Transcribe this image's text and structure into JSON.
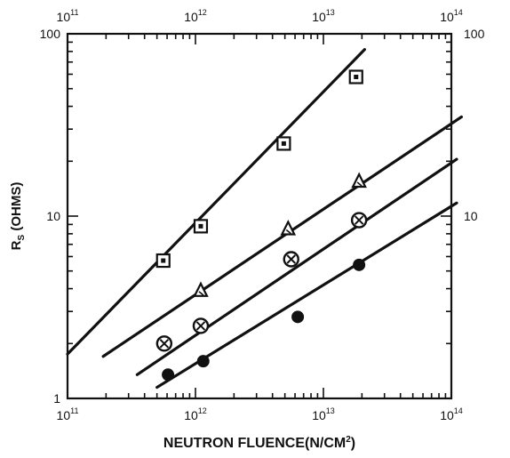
{
  "chart_data": {
    "type": "scatter",
    "x_scale": "log",
    "y_scale": "log",
    "xlim": [
      100000000000.0,
      100000000000000.0
    ],
    "ylim": [
      1,
      100
    ],
    "x_ticks": [
      100000000000.0,
      1000000000000.0,
      10000000000000.0,
      100000000000000.0
    ],
    "y_ticks": [
      1,
      10,
      100
    ],
    "x_tick_labels": [
      {
        "base": "10",
        "exp": "11"
      },
      {
        "base": "10",
        "exp": "12"
      },
      {
        "base": "10",
        "exp": "13"
      },
      {
        "base": "10",
        "exp": "14"
      }
    ],
    "y_tick_labels": [
      "1",
      "10",
      "100"
    ],
    "right_y_tick_labels": [
      "10",
      "100"
    ],
    "xlabel": {
      "text": "NEUTRON FLUENCE(N/CM",
      "exp": "2",
      "close": ")"
    },
    "ylabel": {
      "main": "R",
      "sub": "S",
      "rest": " (OHMS)"
    },
    "grid": false,
    "series": [
      {
        "marker": "square-dot",
        "points": [
          [
            560000000000.0,
            5.7
          ],
          [
            1100000000000.0,
            8.8
          ],
          [
            4900000000000.0,
            25
          ],
          [
            18000000000000.0,
            58
          ]
        ],
        "fit": [
          [
            100000000000.0,
            1.75
          ],
          [
            21000000000000.0,
            82
          ]
        ]
      },
      {
        "marker": "triangle",
        "points": [
          [
            1100000000000.0,
            3.9
          ],
          [
            5300000000000.0,
            8.5
          ],
          [
            19000000000000.0,
            15.5
          ]
        ],
        "fit": [
          [
            190000000000.0,
            1.7
          ],
          [
            120000000000000.0,
            35
          ]
        ]
      },
      {
        "marker": "circle-x",
        "points": [
          [
            570000000000.0,
            2.0
          ],
          [
            1100000000000.0,
            2.5
          ],
          [
            5600000000000.0,
            5.8
          ],
          [
            19000000000000.0,
            9.5
          ]
        ],
        "fit": [
          [
            350000000000.0,
            1.35
          ],
          [
            110000000000000.0,
            20.5
          ]
        ]
      },
      {
        "marker": "filled-circle",
        "points": [
          [
            610000000000.0,
            1.35
          ],
          [
            1150000000000.0,
            1.6
          ],
          [
            6300000000000.0,
            2.8
          ],
          [
            19000000000000.0,
            5.4
          ]
        ],
        "fit": [
          [
            500000000000.0,
            1.15
          ],
          [
            110000000000000.0,
            11.8
          ]
        ]
      }
    ]
  }
}
